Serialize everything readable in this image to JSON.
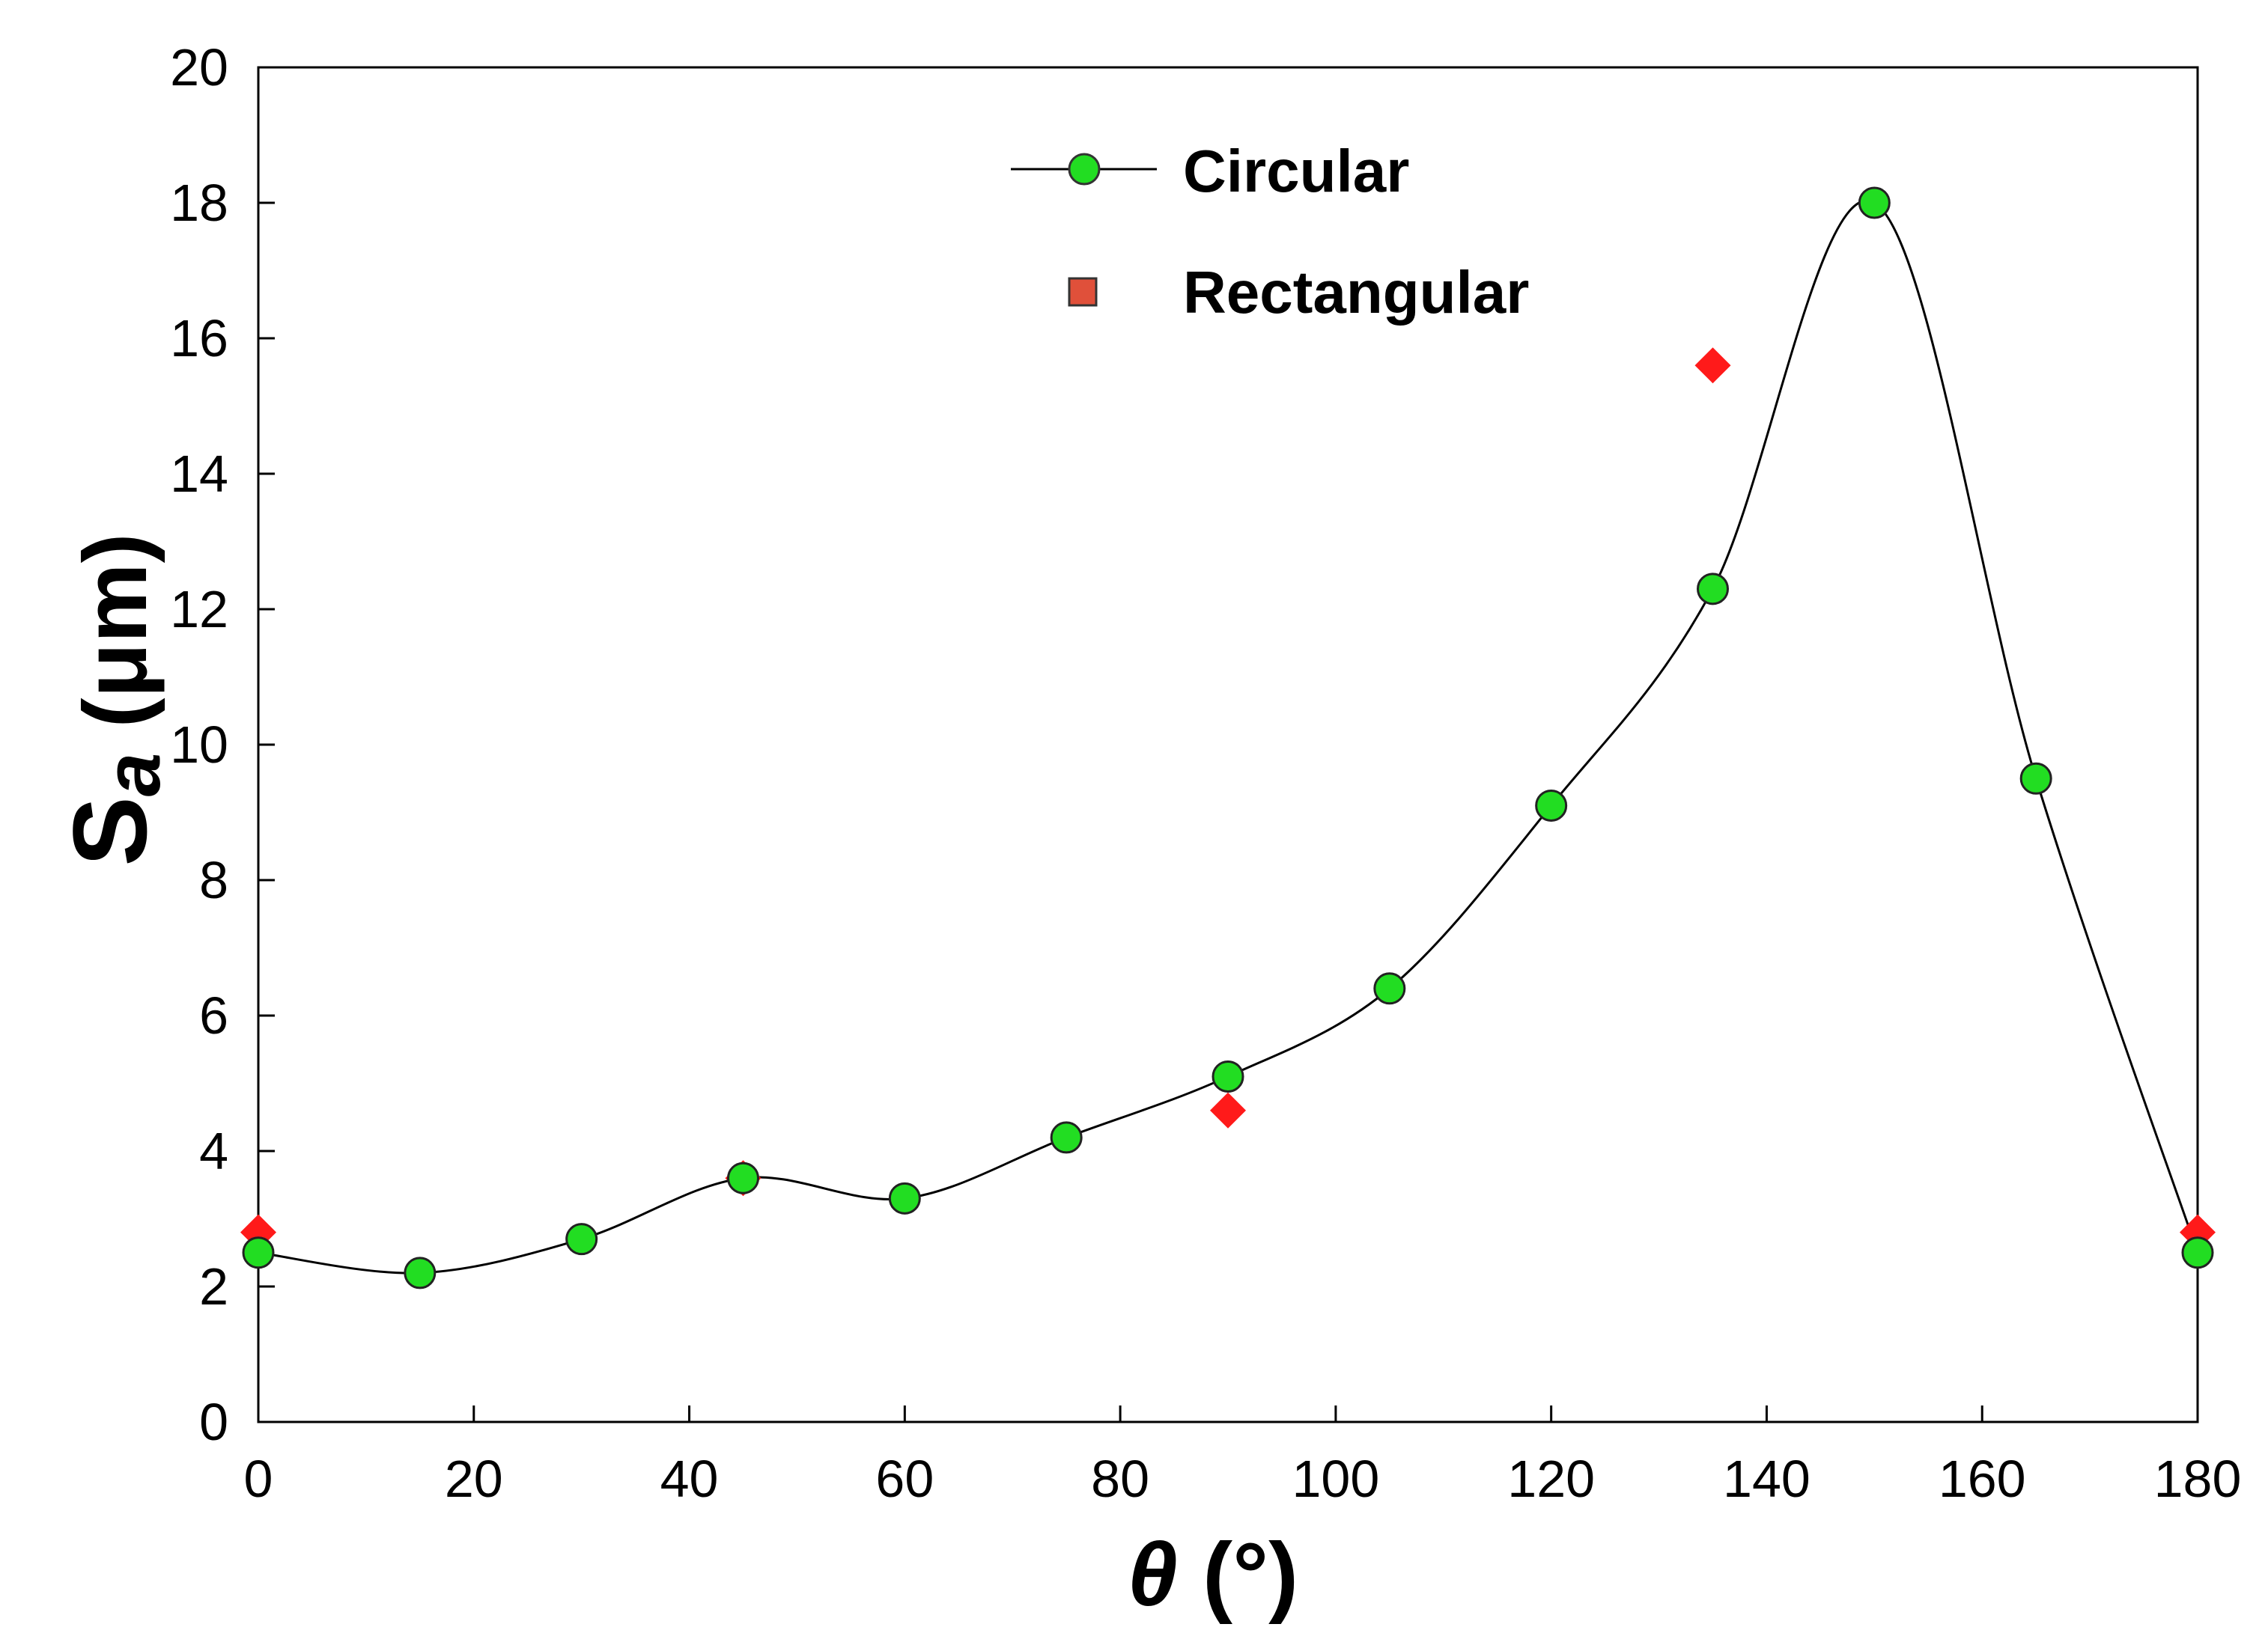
{
  "chart_data": {
    "type": "line",
    "xlabel": "θ (°)",
    "ylabel": "Sa (μm)",
    "xlim": [
      0,
      180
    ],
    "ylim": [
      0,
      20
    ],
    "xticks": [
      0,
      20,
      40,
      60,
      80,
      100,
      120,
      140,
      160,
      180
    ],
    "yticks": [
      0,
      2,
      4,
      6,
      8,
      10,
      12,
      14,
      16,
      18,
      20
    ],
    "grid": false,
    "legend_position": "top-center",
    "series": [
      {
        "name": "Circular",
        "style": "smooth line with circle markers",
        "marker_color": "#22dd22",
        "line_color": "#000000",
        "x": [
          0,
          15,
          30,
          45,
          60,
          75,
          90,
          105,
          120,
          135,
          150,
          165,
          180
        ],
        "y": [
          2.5,
          2.2,
          2.7,
          3.6,
          3.3,
          4.2,
          5.1,
          6.4,
          9.1,
          12.3,
          18.0,
          9.5,
          2.5
        ]
      },
      {
        "name": "Rectangular",
        "style": "diamond markers only",
        "marker_color": "#ff1a1a",
        "x": [
          0,
          45,
          90,
          135,
          180
        ],
        "y": [
          2.8,
          3.6,
          4.6,
          15.6,
          2.8
        ]
      }
    ]
  }
}
